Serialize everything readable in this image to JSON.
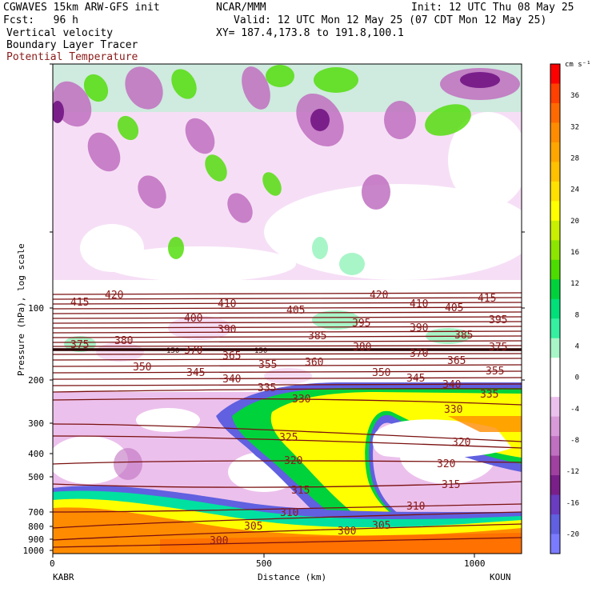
{
  "header": {
    "title_left": "CGWAVES 15km ARW-GFS init",
    "fcst": "Fcst:   96 h",
    "center": "NCAR/MMM",
    "init": "Init: 12 UTC Thu 08 May 25",
    "valid": "Valid: 12 UTC Mon 12 May 25 (07 CDT Mon 12 May 25)",
    "xy": "XY= 187.4,173.8 to 191.8,100.1",
    "field1": "Vertical velocity",
    "field2": "Boundary Layer Tracer",
    "field3": "Potential Temperature"
  },
  "chart_data": {
    "type": "heatmap",
    "title": "Vertical velocity",
    "overlay_fields": [
      "Boundary Layer Tracer",
      "Potential Temperature"
    ],
    "xlabel": "Distance (km)",
    "ylabel": "Pressure (hPa), log scale",
    "x_ticks": [
      "0",
      "500",
      "1000"
    ],
    "xlim": [
      0,
      1120
    ],
    "y_ticks": [
      "100",
      "200",
      "300",
      "400",
      "500",
      "700",
      "800",
      "900",
      "1000"
    ],
    "y_scale": "log",
    "x_end_left": "KABR",
    "x_end_right": "KOUN",
    "colorbar": {
      "unit": "cm s⁻¹",
      "labels": [
        "36",
        "32",
        "28",
        "24",
        "20",
        "16",
        "12",
        "8",
        "4",
        "0",
        "-4",
        "-8",
        "-12",
        "-16",
        "-20"
      ],
      "colors": [
        "#ff0000",
        "#ff4000",
        "#ff6a00",
        "#ff8c00",
        "#ffa600",
        "#ffc000",
        "#ffe000",
        "#ffff00",
        "#c8f000",
        "#8ce600",
        "#4cdc00",
        "#00d23c",
        "#00e078",
        "#34f0a0",
        "#a8f5c8",
        "#ffffff",
        "#ffffff",
        "#ecc0ec",
        "#d99ad9",
        "#c070c0",
        "#a040a0",
        "#7a1f8a",
        "#6a3cc0",
        "#6060e0",
        "#7b7bff"
      ]
    },
    "theta_contours": {
      "labels_top": [
        "415",
        "420",
        "410",
        "420",
        "410",
        "405",
        "415"
      ],
      "labels_row2": [
        "400",
        "405",
        "395",
        "390",
        "395"
      ],
      "labels_row3": [
        "390",
        "385",
        "385",
        "380"
      ],
      "labels_row4": [
        "375",
        "380",
        "370",
        "365",
        "375",
        "370",
        "365",
        "375"
      ],
      "labels_row5": [
        "350",
        "345",
        "340",
        "355",
        "360",
        "350",
        "345",
        "355"
      ],
      "labels_row6": [
        "335",
        "330",
        "340",
        "335"
      ],
      "labels_mid": [
        "330",
        "325",
        "320",
        "320",
        "320",
        "315",
        "315",
        "310",
        "310",
        "305",
        "305",
        "300",
        "300"
      ],
      "pressure_markers": [
        "150",
        "150"
      ]
    }
  }
}
